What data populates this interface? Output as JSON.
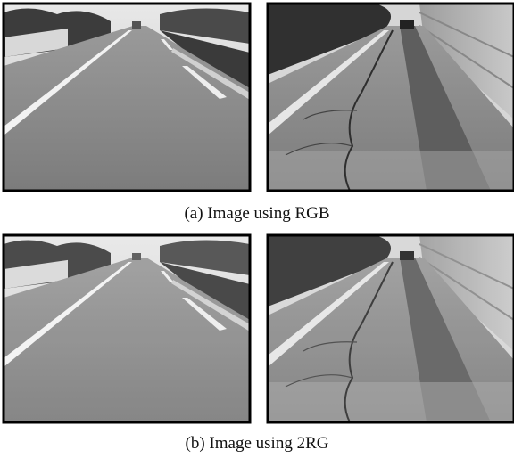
{
  "figure": {
    "captions": [
      "(a) Image using RGB",
      "(b) Image using 2RG"
    ]
  }
}
